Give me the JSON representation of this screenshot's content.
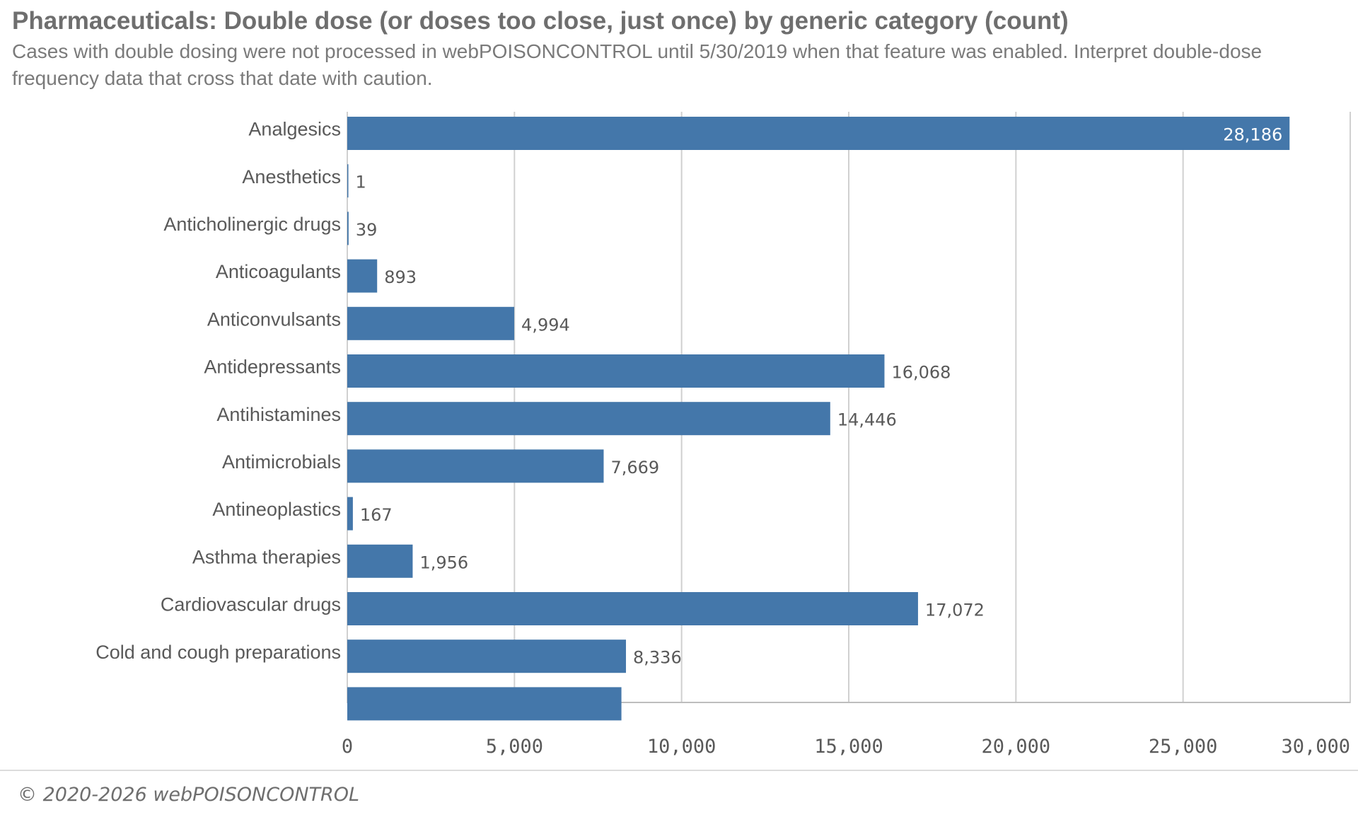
{
  "chart_data": {
    "type": "bar",
    "orientation": "horizontal",
    "title": "Pharmaceuticals: Double dose (or doses too close, just once) by generic category (count)",
    "subtitle": "Cases with double dosing were not processed in webPOISONCONTROL until 5/30/2019 when that feature was enabled. Interpret double-dose frequency data that cross that date with caution.",
    "categories": [
      "Analgesics",
      "Anesthetics",
      "Anticholinergic drugs",
      "Anticoagulants",
      "Anticonvulsants",
      "Antidepressants",
      "Antihistamines",
      "Antimicrobials",
      "Antineoplastics",
      "Asthma therapies",
      "Cardiovascular drugs",
      "Cold and cough preparations",
      ""
    ],
    "values": [
      28186,
      1,
      39,
      893,
      4994,
      16068,
      14446,
      7669,
      167,
      1956,
      17072,
      8336,
      8200
    ],
    "value_labels": [
      "28,186",
      "1",
      "39",
      "893",
      "4,994",
      "16,068",
      "14,446",
      "7,669",
      "167",
      "1,956",
      "17,072",
      "8,336",
      ""
    ],
    "xlim": [
      0,
      30000
    ],
    "xticks": [
      0,
      5000,
      10000,
      15000,
      20000,
      25000,
      30000
    ],
    "xtick_labels": [
      "0",
      "5,000",
      "10,000",
      "15,000",
      "20,000",
      "25,000",
      "30,000"
    ],
    "xlabel": "",
    "ylabel": "",
    "grid": "vertical",
    "legend": "none",
    "colors": {
      "bar": "#4477aa",
      "grid": "#d0d0d0",
      "axis": "#bdbdbd"
    }
  },
  "footer": {
    "copyright": "© 2020-2026 webPOISONCONTROL"
  }
}
